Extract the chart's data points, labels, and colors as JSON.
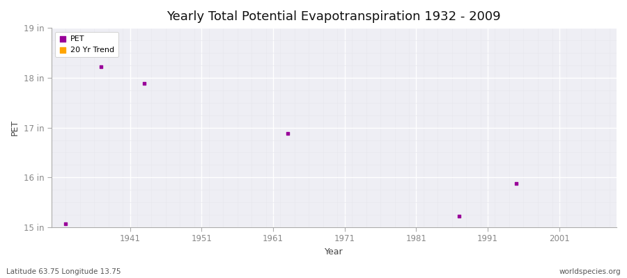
{
  "title": "Yearly Total Potential Evapotranspiration 1932 - 2009",
  "xlabel": "Year",
  "ylabel": "PET",
  "subtitle_left": "Latitude 63.75 Longitude 13.75",
  "subtitle_right": "worldspecies.org",
  "pet_data": [
    [
      1932,
      15.07
    ],
    [
      1937,
      18.22
    ],
    [
      1943,
      17.88
    ],
    [
      1963,
      16.88
    ],
    [
      1987,
      15.22
    ],
    [
      1995,
      15.88
    ]
  ],
  "pet_color": "#990099",
  "trend_color": "#FFA500",
  "marker": "s",
  "marker_size": 3,
  "xlim": [
    1930,
    2009
  ],
  "ylim": [
    15,
    19
  ],
  "ytick_labels": [
    "15 in",
    "16 in",
    "17 in",
    "18 in",
    "19 in"
  ],
  "ytick_values": [
    15,
    16,
    17,
    18,
    19
  ],
  "xtick_values": [
    1941,
    1951,
    1961,
    1971,
    1981,
    1991,
    2001
  ],
  "xtick_labels": [
    "1941",
    "1951",
    "1961",
    "1971",
    "1981",
    "1991",
    "2001"
  ],
  "plot_bg_color": "#eeeef4",
  "outer_bg_color": "#ffffff",
  "grid_major_color": "#ffffff",
  "grid_minor_color": "#e8e8ee",
  "spine_color": "#aaaaaa",
  "tick_color": "#888888",
  "legend_labels": [
    "PET",
    "20 Yr Trend"
  ],
  "legend_pet_color": "#990099",
  "legend_trend_color": "#FFA500"
}
